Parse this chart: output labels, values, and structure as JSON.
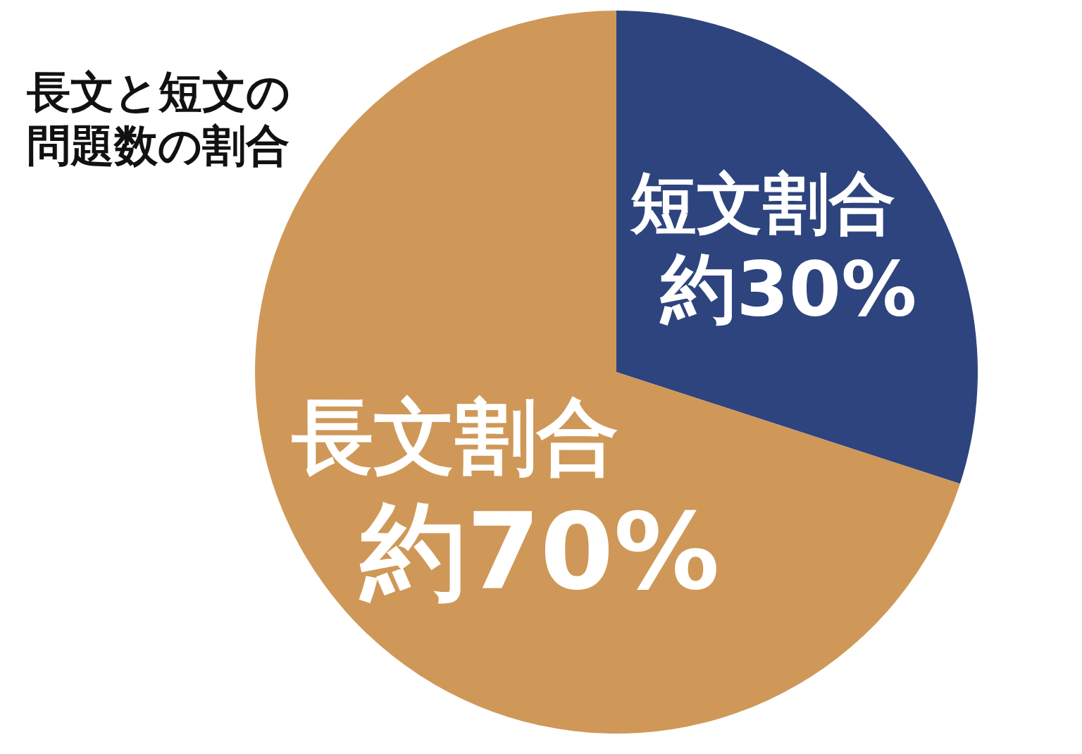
{
  "chart_data": {
    "type": "pie",
    "title": "長文と短文の問題数の割合",
    "categories": [
      "短文割合",
      "長文割合"
    ],
    "values": [
      30,
      70
    ],
    "value_labels": [
      "約30%",
      "約70%"
    ],
    "colors": [
      "#2e447e",
      "#cf9858"
    ]
  }
}
